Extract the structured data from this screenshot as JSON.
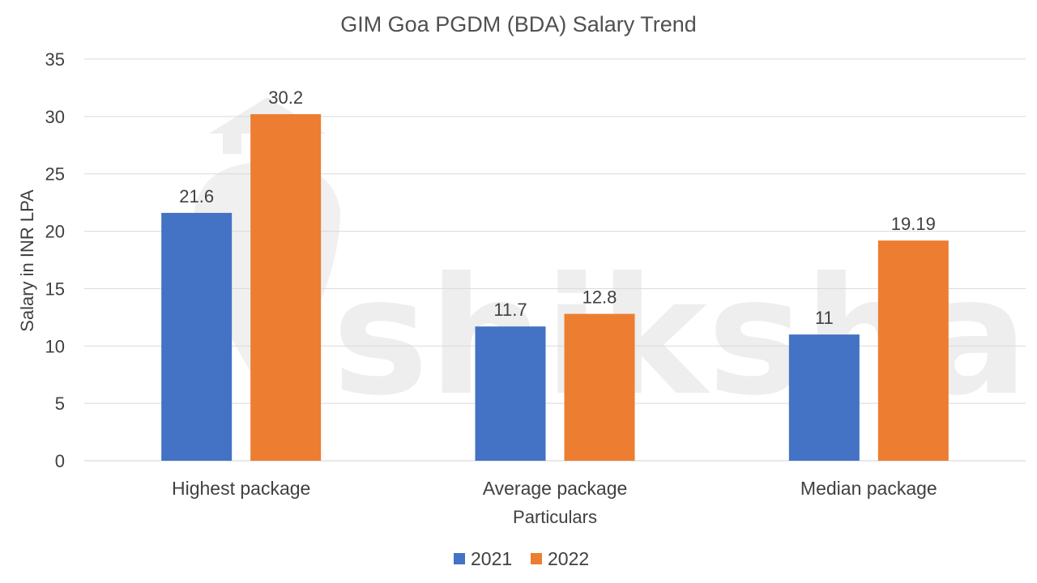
{
  "chart_data": {
    "type": "bar",
    "title": "GIM Goa PGDM (BDA) Salary Trend",
    "xlabel": "Particulars",
    "ylabel": "Salary in INR LPA",
    "categories": [
      "Highest package",
      "Average package",
      "Median package"
    ],
    "series": [
      {
        "name": "2021",
        "values": [
          21.6,
          11.7,
          11
        ],
        "labels": [
          "21.6",
          "11.7",
          "11"
        ],
        "color": "#4472C4"
      },
      {
        "name": "2022",
        "values": [
          30.2,
          12.8,
          19.19
        ],
        "labels": [
          "30.2",
          "12.8",
          "19.19"
        ],
        "color": "#ED7D31"
      }
    ],
    "ylim": [
      0,
      35
    ],
    "yticks": [
      0,
      5,
      10,
      15,
      20,
      25,
      30,
      35
    ],
    "grid": true,
    "legend_position": "bottom",
    "watermark": "shiksha"
  }
}
